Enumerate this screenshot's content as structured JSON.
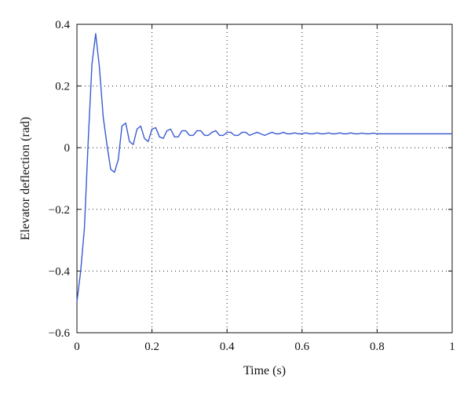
{
  "chart_data": {
    "type": "line",
    "title": "",
    "xlabel": "Time (s)",
    "ylabel": "Elevator deflection (rad)",
    "xlim": [
      0,
      1
    ],
    "ylim": [
      -0.6,
      0.4
    ],
    "xticks": [
      0,
      0.2,
      0.4,
      0.6,
      0.8,
      1
    ],
    "xtick_labels": [
      "0",
      "0.2",
      "0.4",
      "0.6",
      "0.8",
      "1"
    ],
    "yticks": [
      -0.6,
      -0.4,
      -0.2,
      0,
      0.2,
      0.4
    ],
    "ytick_labels": [
      "−0.6",
      "−0.4",
      "−0.2",
      "0",
      "0.2",
      "0.4"
    ],
    "grid": true,
    "grid_style": "dotted",
    "line_color": "#3a5bd0",
    "series": [
      {
        "x": [
          0,
          0.01,
          0.02,
          0.03,
          0.04,
          0.05,
          0.06,
          0.07,
          0.08,
          0.09,
          0.1,
          0.11,
          0.12,
          0.13,
          0.14,
          0.15,
          0.16,
          0.17,
          0.18,
          0.19,
          0.2,
          0.21,
          0.22,
          0.23,
          0.24,
          0.25,
          0.26,
          0.27,
          0.28,
          0.29,
          0.3,
          0.31,
          0.32,
          0.33,
          0.34,
          0.35,
          0.36,
          0.37,
          0.38,
          0.39,
          0.4,
          0.41,
          0.42,
          0.43,
          0.44,
          0.45,
          0.46,
          0.47,
          0.48,
          0.49,
          0.5,
          0.51,
          0.52,
          0.53,
          0.54,
          0.55,
          0.56,
          0.57,
          0.58,
          0.59,
          0.6,
          0.61,
          0.62,
          0.63,
          0.64,
          0.65,
          0.66,
          0.67,
          0.68,
          0.69,
          0.7,
          0.71,
          0.72,
          0.73,
          0.74,
          0.75,
          0.76,
          0.77,
          0.78,
          0.79,
          0.8,
          0.81,
          0.82,
          0.85,
          0.9,
          0.95,
          1.0
        ],
        "y": [
          -0.5,
          -0.4,
          -0.26,
          0.02,
          0.27,
          0.37,
          0.26,
          0.1,
          0.01,
          -0.07,
          -0.08,
          -0.04,
          0.07,
          0.08,
          0.02,
          0.01,
          0.06,
          0.07,
          0.03,
          0.02,
          0.06,
          0.065,
          0.035,
          0.03,
          0.055,
          0.06,
          0.035,
          0.035,
          0.055,
          0.055,
          0.04,
          0.04,
          0.055,
          0.055,
          0.04,
          0.04,
          0.05,
          0.055,
          0.04,
          0.04,
          0.05,
          0.05,
          0.04,
          0.04,
          0.05,
          0.05,
          0.04,
          0.045,
          0.05,
          0.045,
          0.04,
          0.045,
          0.05,
          0.045,
          0.045,
          0.05,
          0.045,
          0.045,
          0.048,
          0.045,
          0.045,
          0.048,
          0.045,
          0.045,
          0.048,
          0.045,
          0.045,
          0.048,
          0.045,
          0.045,
          0.048,
          0.045,
          0.045,
          0.048,
          0.045,
          0.045,
          0.047,
          0.045,
          0.045,
          0.047,
          0.045,
          0.045,
          0.045,
          0.045,
          0.045,
          0.045,
          0.045
        ]
      }
    ]
  }
}
